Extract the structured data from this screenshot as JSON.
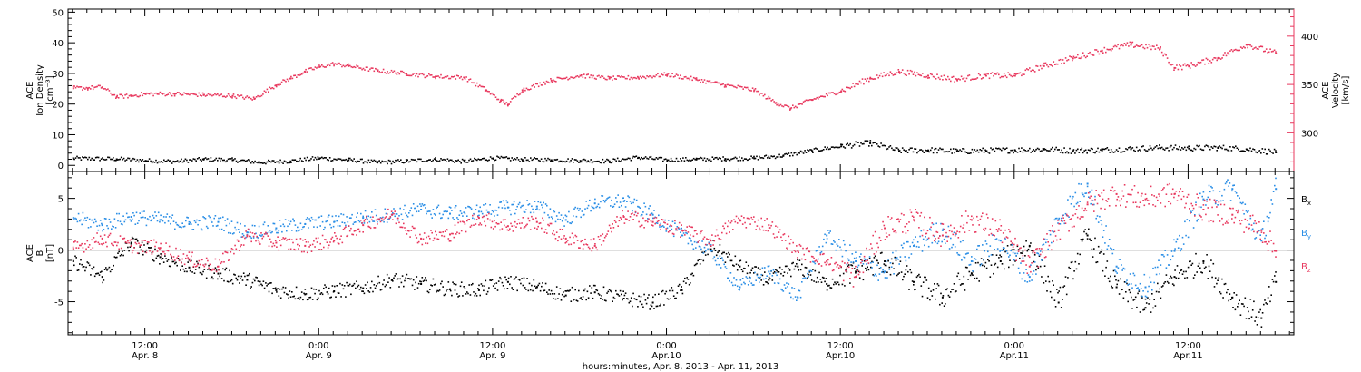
{
  "chart_data": [
    {
      "type": "scatter",
      "panel": "density_velocity",
      "ylabel": {
        "line1": "ACE",
        "line2": "Ion Density",
        "line3": "[cm⁻³]"
      },
      "ylabel_right": {
        "line1": "ACE",
        "line2": "Velocity",
        "line3": "[km/s]"
      },
      "ylim": [
        -2,
        51
      ],
      "yticks": [
        0,
        10,
        20,
        30,
        40,
        50
      ],
      "ylim_right": [
        260,
        428
      ],
      "yticks_right": [
        300,
        350,
        400
      ],
      "series": [
        {
          "axis": "left",
          "color": "#000000",
          "x": [
            7.0,
            10.0,
            12.0,
            14.0,
            16.0,
            18.0,
            20.0,
            22.0,
            24.0,
            26.0,
            28.0,
            30.0,
            32.0,
            34.0,
            36.0,
            38.0,
            40.0,
            42.0,
            44.0,
            46.0,
            48.0,
            50.0,
            52.0,
            54.0,
            56.0,
            58.0,
            60.0,
            62.0,
            64.0,
            66.0,
            68.0,
            70.0,
            72.0,
            74.0,
            76.0,
            78.0,
            80.0,
            82.0,
            84.0,
            86.0,
            88.0,
            90.0
          ],
          "y": [
            2.5,
            2.3,
            1.8,
            1.5,
            2.2,
            2.0,
            1.2,
            1.6,
            2.6,
            2.0,
            1.2,
            1.6,
            2.2,
            1.5,
            2.6,
            2.1,
            2.0,
            1.8,
            1.6,
            2.8,
            2.0,
            2.2,
            2.4,
            2.6,
            3.4,
            5.0,
            6.5,
            7.5,
            5.0,
            5.2,
            4.8,
            5.0,
            5.2,
            5.5,
            5.0,
            5.2,
            5.6,
            6.0,
            5.8,
            6.0,
            5.5,
            4.5
          ]
        },
        {
          "axis": "right",
          "color": "#e8385e",
          "x": [
            7.0,
            8.0,
            9.0,
            10.0,
            11.0,
            12.0,
            14.0,
            16.0,
            18.0,
            19.5,
            21.0,
            22.0,
            23.0,
            24.0,
            25.0,
            26.0,
            28.0,
            30.0,
            32.0,
            34.0,
            35.5,
            36.5,
            37.0,
            38.0,
            40.0,
            42.0,
            44.0,
            46.0,
            48.0,
            50.0,
            52.0,
            54.0,
            55.5,
            56.5,
            58.0,
            60.0,
            62.0,
            64.0,
            66.0,
            68.0,
            70.0,
            72.0,
            74.0,
            76.0,
            78.0,
            80.0,
            82.0,
            83.0,
            84.0,
            86.0,
            88.0,
            90.0
          ],
          "y": [
            347,
            347,
            348,
            338,
            339,
            341,
            341,
            340,
            339,
            336,
            350,
            357,
            364,
            369,
            372,
            370,
            365,
            362,
            359,
            358,
            345,
            334,
            330,
            345,
            355,
            360,
            357,
            358,
            361,
            356,
            350,
            345,
            332,
            326,
            335,
            344,
            357,
            364,
            360,
            356,
            360,
            360,
            370,
            378,
            386,
            392,
            388,
            368,
            370,
            378,
            392,
            383
          ]
        }
      ]
    },
    {
      "type": "scatter",
      "panel": "magnetic_field",
      "ylabel": {
        "line1": "ACE",
        "line2": "B",
        "line3": "[nT]"
      },
      "ylim": [
        -8.2,
        7.6
      ],
      "yticks": [
        -5,
        0,
        5
      ],
      "zero_line": true,
      "series": [
        {
          "name": "Bx",
          "label": "B",
          "sub": "x",
          "color": "#000000",
          "x": [
            7.0,
            9.0,
            11.0,
            13.0,
            15.0,
            17.0,
            19.0,
            21.0,
            23.0,
            25.0,
            27.0,
            29.0,
            31.0,
            33.0,
            35.0,
            37.0,
            39.0,
            41.0,
            43.0,
            45.0,
            47.0,
            49.0,
            51.0,
            53.0,
            55.0,
            57.0,
            59.0,
            61.0,
            63.0,
            65.0,
            67.0,
            69.0,
            71.0,
            73.0,
            75.0,
            77.0,
            79.0,
            81.0,
            83.0,
            85.0,
            87.0,
            89.0,
            90.0
          ],
          "y": [
            -1.0,
            -2.5,
            0.8,
            -0.6,
            -1.6,
            -2.2,
            -2.8,
            -3.8,
            -4.2,
            -3.9,
            -3.6,
            -2.8,
            -3.2,
            -3.7,
            -3.8,
            -3.0,
            -3.5,
            -4.3,
            -4.0,
            -4.6,
            -5.0,
            -3.8,
            0.5,
            -1.5,
            -2.8,
            -1.5,
            -3.2,
            -2.0,
            -1.0,
            -3.0,
            -4.5,
            -2.2,
            -1.0,
            0.5,
            -5.0,
            1.5,
            -3.5,
            -5.5,
            -2.5,
            -1.0,
            -4.5,
            -6.5,
            -3.0
          ]
        },
        {
          "name": "By",
          "label": "B",
          "sub": "y",
          "color": "#2a8ee6",
          "x": [
            7.0,
            9.0,
            11.0,
            13.0,
            15.0,
            17.0,
            19.0,
            21.0,
            23.0,
            25.0,
            27.0,
            29.0,
            31.0,
            33.0,
            35.0,
            37.0,
            39.0,
            41.0,
            43.0,
            45.0,
            47.0,
            49.0,
            51.0,
            53.0,
            55.0,
            57.0,
            59.0,
            61.0,
            63.0,
            65.0,
            67.0,
            69.0,
            71.0,
            73.0,
            75.0,
            77.0,
            79.0,
            81.0,
            83.0,
            85.0,
            87.0,
            89.0,
            90.0
          ],
          "y": [
            3.2,
            2.5,
            3.3,
            3.0,
            2.6,
            2.8,
            1.8,
            2.2,
            2.6,
            2.8,
            3.2,
            3.5,
            4.0,
            3.6,
            3.8,
            4.2,
            4.3,
            3.0,
            4.6,
            4.8,
            3.5,
            1.5,
            0.0,
            -3.5,
            -2.0,
            -4.5,
            1.5,
            -1.0,
            -2.0,
            0.5,
            2.0,
            -1.0,
            1.0,
            -2.5,
            3.0,
            6.5,
            -1.5,
            -3.5,
            0.0,
            5.0,
            6.0,
            1.0,
            6.0
          ]
        },
        {
          "name": "Bz",
          "label": "B",
          "sub": "z",
          "color": "#e8385e",
          "x": [
            7.0,
            9.0,
            11.0,
            13.0,
            15.0,
            17.0,
            19.0,
            21.0,
            23.0,
            25.0,
            27.0,
            29.0,
            31.0,
            33.0,
            35.0,
            37.0,
            39.0,
            41.0,
            43.0,
            45.0,
            47.0,
            49.0,
            51.0,
            53.0,
            55.0,
            57.0,
            59.0,
            61.0,
            63.0,
            65.0,
            67.0,
            69.0,
            71.0,
            73.0,
            75.0,
            77.0,
            79.0,
            81.0,
            83.0,
            85.0,
            87.0,
            89.0,
            90.0
          ],
          "y": [
            0.2,
            1.2,
            0.5,
            0.3,
            -0.8,
            -1.5,
            1.5,
            0.8,
            0.5,
            1.0,
            2.5,
            3.5,
            1.2,
            1.6,
            3.2,
            2.4,
            2.8,
            1.2,
            0.5,
            3.3,
            2.8,
            2.0,
            1.0,
            3.0,
            2.5,
            0.0,
            -1.0,
            -2.5,
            2.2,
            3.0,
            1.5,
            3.0,
            2.0,
            -1.5,
            2.0,
            4.5,
            5.5,
            5.0,
            5.5,
            4.0,
            3.5,
            2.0,
            0.0
          ]
        }
      ]
    }
  ],
  "xaxis": {
    "ticks": [
      {
        "hour": 12,
        "time": "12:00",
        "date": "Apr. 8"
      },
      {
        "hour": 24,
        "time": "0:00",
        "date": "Apr. 9"
      },
      {
        "hour": 36,
        "time": "12:00",
        "date": "Apr. 9"
      },
      {
        "hour": 48,
        "time": "0:00",
        "date": "Apr.10"
      },
      {
        "hour": 60,
        "time": "12:00",
        "date": "Apr.10"
      },
      {
        "hour": 72,
        "time": "0:00",
        "date": "Apr.11"
      },
      {
        "hour": 84,
        "time": "12:00",
        "date": "Apr.11"
      }
    ],
    "range_hours": [
      6.7,
      91.3
    ],
    "label": "hours:minutes, Apr.  8, 2013 - Apr. 11, 2013"
  }
}
